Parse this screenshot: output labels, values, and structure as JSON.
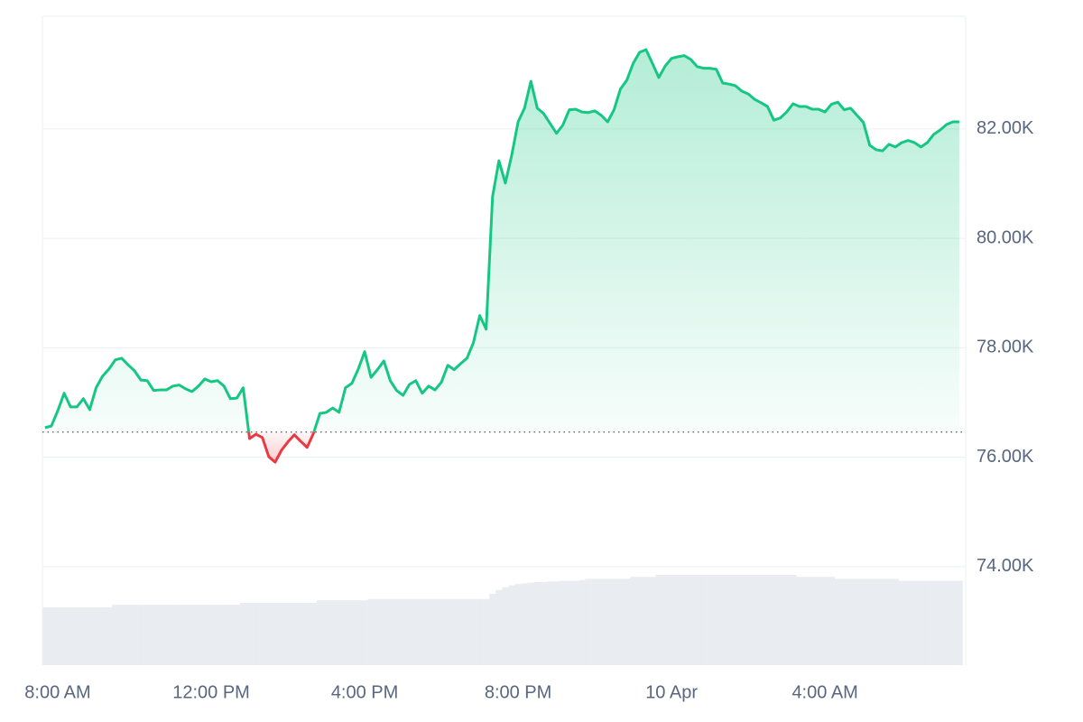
{
  "chart_data": {
    "type": "line",
    "x": [
      460,
      470,
      480,
      490,
      500,
      510,
      520,
      530,
      540,
      550,
      560,
      570,
      580,
      590,
      600,
      610,
      620,
      630,
      640,
      650,
      660,
      670,
      680,
      690,
      700,
      710,
      720,
      730,
      740,
      750,
      760,
      770,
      780,
      790,
      800,
      810,
      820,
      830,
      840,
      850,
      860,
      870,
      880,
      890,
      900,
      910,
      920,
      930,
      940,
      950,
      960,
      970,
      980,
      990,
      1000,
      1010,
      1020,
      1030,
      1040,
      1050,
      1060,
      1070,
      1080,
      1090,
      1100,
      1110,
      1120,
      1130,
      1140,
      1150,
      1160,
      1170,
      1180,
      1190,
      1200,
      1210,
      1220,
      1230,
      1240,
      1250,
      1260,
      1270,
      1280,
      1290,
      1300,
      1310,
      1320,
      1330,
      1340,
      1350,
      1360,
      1370,
      1380,
      1390,
      1400,
      1410,
      1420,
      1430,
      1440,
      1450,
      1460,
      1470,
      1480,
      1490,
      1500,
      1510,
      1520,
      1530,
      1540,
      1550,
      1560,
      1570,
      1580,
      1590,
      1600,
      1610,
      1620,
      1630,
      1640,
      1650,
      1660,
      1670,
      1680,
      1690,
      1700,
      1710,
      1720,
      1730,
      1740,
      1750,
      1760,
      1770,
      1780,
      1790,
      1800,
      1810,
      1820,
      1830,
      1840,
      1850,
      1860,
      1870,
      1880,
      1890
    ],
    "values": [
      76540,
      76570,
      76850,
      77170,
      76920,
      76920,
      77070,
      76870,
      77270,
      77480,
      77610,
      77780,
      77810,
      77690,
      77580,
      77410,
      77400,
      77220,
      77230,
      77230,
      77300,
      77320,
      77250,
      77200,
      77300,
      77430,
      77380,
      77400,
      77300,
      77070,
      77080,
      77270,
      76340,
      76420,
      76360,
      76010,
      75910,
      76130,
      76280,
      76410,
      76290,
      76180,
      76440,
      76800,
      76820,
      76900,
      76820,
      77270,
      77350,
      77610,
      77930,
      77460,
      77600,
      77760,
      77400,
      77220,
      77130,
      77330,
      77400,
      77170,
      77300,
      77230,
      77370,
      77680,
      77600,
      77710,
      77810,
      78090,
      78590,
      78340,
      80760,
      81420,
      81010,
      81520,
      82130,
      82380,
      82870,
      82380,
      82280,
      82100,
      81920,
      82070,
      82350,
      82360,
      82310,
      82300,
      82330,
      82250,
      82130,
      82350,
      82730,
      82890,
      83200,
      83400,
      83450,
      83200,
      82940,
      83150,
      83290,
      83320,
      83340,
      83270,
      83140,
      83110,
      83110,
      83090,
      82840,
      82820,
      82790,
      82690,
      82640,
      82540,
      82480,
      82410,
      82160,
      82200,
      82310,
      82460,
      82410,
      82410,
      82360,
      82360,
      82310,
      82450,
      82490,
      82350,
      82380,
      82250,
      82120,
      81700,
      81620,
      81600,
      81720,
      81670,
      81750,
      81790,
      81750,
      81670,
      81750,
      81900,
      81980,
      82080,
      82130,
      82130
    ],
    "baseline": 76460,
    "up_color": "#16c784",
    "down_color": "#ea3943",
    "volume": [
      8.9,
      8.9,
      8.9,
      8.9,
      8.9,
      8.9,
      8.9,
      8.9,
      8.9,
      8.9,
      8.9,
      9.3,
      9.3,
      9.3,
      9.3,
      9.3,
      9.3,
      9.3,
      9.3,
      9.3,
      9.3,
      9.3,
      9.3,
      9.3,
      9.3,
      9.3,
      9.3,
      9.3,
      9.3,
      9.3,
      9.3,
      9.6,
      9.6,
      9.6,
      9.6,
      9.6,
      9.6,
      9.6,
      9.6,
      9.6,
      9.6,
      9.6,
      9.6,
      10.0,
      10.0,
      10.0,
      10.0,
      10.0,
      10.0,
      10.0,
      10.0,
      10.2,
      10.2,
      10.2,
      10.2,
      10.2,
      10.2,
      10.2,
      10.2,
      10.2,
      10.2,
      10.2,
      10.2,
      10.2,
      10.2,
      10.2,
      10.2,
      10.2,
      10.2,
      10.2,
      11.0,
      11.6,
      12.0,
      12.3,
      12.5,
      12.6,
      12.7,
      12.8,
      12.8,
      12.9,
      12.9,
      13.0,
      13.0,
      13.0,
      13.1,
      13.3,
      13.3,
      13.3,
      13.3,
      13.3,
      13.3,
      13.3,
      13.6,
      13.6,
      13.6,
      13.6,
      13.9,
      13.9,
      13.9,
      13.9,
      13.9,
      13.9,
      13.9,
      13.9,
      13.9,
      13.9,
      13.9,
      13.9,
      13.9,
      13.9,
      13.9,
      13.9,
      13.9,
      13.9,
      13.9,
      13.9,
      13.9,
      13.9,
      13.6,
      13.6,
      13.6,
      13.6,
      13.6,
      13.6,
      13.3,
      13.3,
      13.3,
      13.3,
      13.3,
      13.3,
      13.3,
      13.3,
      13.3,
      13.3,
      13.0,
      13.0,
      13.0,
      13.0,
      13.0,
      13.0,
      13.0,
      13.0,
      13.0,
      13.0
    ],
    "volume_color": "#e9edf1",
    "xlim": [
      456,
      1900
    ],
    "xticks": [
      {
        "value": 480,
        "label": "8:00 AM"
      },
      {
        "value": 720,
        "label": "12:00 PM"
      },
      {
        "value": 960,
        "label": "4:00 PM"
      },
      {
        "value": 1200,
        "label": "8:00 PM"
      },
      {
        "value": 1440,
        "label": "10 Apr"
      },
      {
        "value": 1680,
        "label": "4:00 AM"
      }
    ],
    "ylim": [
      72200,
      84060
    ],
    "yticks": [
      {
        "value": 74000,
        "label": "74.00K"
      },
      {
        "value": 76000,
        "label": "76.00K"
      },
      {
        "value": 78000,
        "label": "78.00K"
      },
      {
        "value": 80000,
        "label": "80.00K"
      },
      {
        "value": 82000,
        "label": "82.00K"
      }
    ],
    "y2lim": [
      0,
      100
    ],
    "grid": true
  }
}
